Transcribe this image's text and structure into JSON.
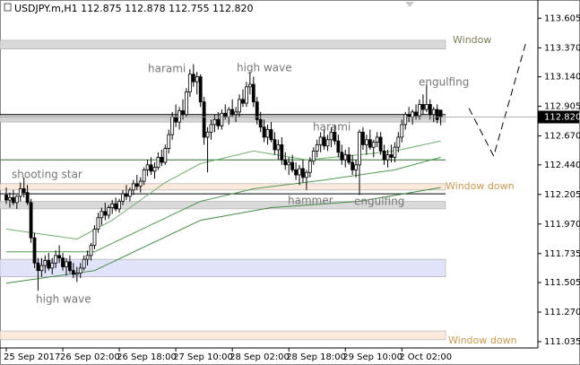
{
  "chart_data": {
    "type": "candlestick",
    "header": "USDJPY.m,H1  112.875 112.878 112.755 112.820",
    "ylim": [
      110.985,
      113.75
    ],
    "yticks": [
      113.605,
      {
        "value": 113.37,
        "label": "113.370"
      },
      {
        "value": 113.14,
        "label": "113.140"
      },
      112.905,
      {
        "value": 112.67,
        "label": "112.670"
      },
      {
        "value": 112.44,
        "label": "112.440"
      },
      112.205,
      {
        "value": 111.97,
        "label": "111.970"
      },
      111.735,
      111.505,
      {
        "value": 111.27,
        "label": "111.270"
      },
      111.035
    ],
    "xlim": [
      -0.5,
      150.5
    ],
    "xticks": [
      {
        "value": 0,
        "label": "25 Sep 2017"
      },
      {
        "value": 16,
        "label": "26 Sep 02:00"
      },
      {
        "value": 32,
        "label": "26 Sep 18:00"
      },
      {
        "value": 48,
        "label": "27 Sep 10:00"
      },
      {
        "value": 64,
        "label": "28 Sep 02:00"
      },
      {
        "value": 80,
        "label": "28 Sep 18:00"
      },
      {
        "value": 96,
        "label": "29 Sep 10:00"
      },
      {
        "value": 112,
        "label": "2 Oct 02:00"
      }
    ],
    "last_price": {
      "value": 112.82,
      "label": "112.820"
    },
    "bull_color": "#ffffff",
    "bear_color": "#000000",
    "candles": [
      [
        112.2,
        112.26,
        112.13,
        112.16
      ],
      [
        112.16,
        112.22,
        112.1,
        112.18
      ],
      [
        112.18,
        112.24,
        112.12,
        112.14
      ],
      [
        112.14,
        112.2,
        112.09,
        112.19
      ],
      [
        112.19,
        112.3,
        112.15,
        112.25
      ],
      [
        112.25,
        112.34,
        112.18,
        112.22
      ],
      [
        112.22,
        112.28,
        112.12,
        112.14
      ],
      [
        112.14,
        112.17,
        111.82,
        111.86
      ],
      [
        111.86,
        111.9,
        111.62,
        111.66
      ],
      [
        111.66,
        111.7,
        111.44,
        111.6
      ],
      [
        111.6,
        111.7,
        111.55,
        111.64
      ],
      [
        111.64,
        111.72,
        111.58,
        111.68
      ],
      [
        111.68,
        111.74,
        111.6,
        111.62
      ],
      [
        111.62,
        111.7,
        111.57,
        111.66
      ],
      [
        111.66,
        111.76,
        111.62,
        111.72
      ],
      [
        111.72,
        111.8,
        111.66,
        111.7
      ],
      [
        111.7,
        111.74,
        111.6,
        111.63
      ],
      [
        111.63,
        111.7,
        111.56,
        111.67
      ],
      [
        111.67,
        111.72,
        111.58,
        111.6
      ],
      [
        111.6,
        111.66,
        111.54,
        111.57
      ],
      [
        111.57,
        111.63,
        111.51,
        111.58
      ],
      [
        111.58,
        111.66,
        111.54,
        111.62
      ],
      [
        111.62,
        111.72,
        111.6,
        111.69
      ],
      [
        111.69,
        111.76,
        111.64,
        111.72
      ],
      [
        111.72,
        111.82,
        111.68,
        111.8
      ],
      [
        111.8,
        111.96,
        111.77,
        111.93
      ],
      [
        111.93,
        112.06,
        111.9,
        112.02
      ],
      [
        112.02,
        112.1,
        111.96,
        112.07
      ],
      [
        112.07,
        112.14,
        112.0,
        112.04
      ],
      [
        112.04,
        112.12,
        112.01,
        112.1
      ],
      [
        112.1,
        112.16,
        112.05,
        112.13
      ],
      [
        112.13,
        112.18,
        112.07,
        112.09
      ],
      [
        112.09,
        112.17,
        112.06,
        112.15
      ],
      [
        112.15,
        112.24,
        112.12,
        112.21
      ],
      [
        112.21,
        112.28,
        112.16,
        112.19
      ],
      [
        112.19,
        112.26,
        112.15,
        112.24
      ],
      [
        112.24,
        112.32,
        112.2,
        112.29
      ],
      [
        112.29,
        112.36,
        112.24,
        112.27
      ],
      [
        112.27,
        112.34,
        112.22,
        112.31
      ],
      [
        112.31,
        112.42,
        112.28,
        112.4
      ],
      [
        112.4,
        112.48,
        112.35,
        112.44
      ],
      [
        112.44,
        112.5,
        112.36,
        112.39
      ],
      [
        112.39,
        112.46,
        112.33,
        112.42
      ],
      [
        112.42,
        112.54,
        112.4,
        112.5
      ],
      [
        112.5,
        112.56,
        112.43,
        112.46
      ],
      [
        112.46,
        112.6,
        112.44,
        112.57
      ],
      [
        112.57,
        112.72,
        112.53,
        112.68
      ],
      [
        112.68,
        112.86,
        112.64,
        112.82
      ],
      [
        112.82,
        112.92,
        112.74,
        112.78
      ],
      [
        112.78,
        112.9,
        112.72,
        112.87
      ],
      [
        112.87,
        112.96,
        112.8,
        112.84
      ],
      [
        112.84,
        113.05,
        112.82,
        113.02
      ],
      [
        113.02,
        113.2,
        112.98,
        113.16
      ],
      [
        113.16,
        113.24,
        113.06,
        113.1
      ],
      [
        113.1,
        113.18,
        113.0,
        113.14
      ],
      [
        113.14,
        113.16,
        112.9,
        112.94
      ],
      [
        112.94,
        112.98,
        112.6,
        112.66
      ],
      [
        112.66,
        112.74,
        112.38,
        112.7
      ],
      [
        112.7,
        112.8,
        112.64,
        112.76
      ],
      [
        112.76,
        112.84,
        112.7,
        112.8
      ],
      [
        112.8,
        112.86,
        112.72,
        112.75
      ],
      [
        112.75,
        112.88,
        112.72,
        112.85
      ],
      [
        112.85,
        112.92,
        112.8,
        112.82
      ],
      [
        112.82,
        112.9,
        112.76,
        112.88
      ],
      [
        112.88,
        112.96,
        112.82,
        112.84
      ],
      [
        112.84,
        112.9,
        112.78,
        112.86
      ],
      [
        112.86,
        113.0,
        112.82,
        112.96
      ],
      [
        112.96,
        113.04,
        112.9,
        112.93
      ],
      [
        112.93,
        113.1,
        112.9,
        113.06
      ],
      [
        113.06,
        113.18,
        113.0,
        113.08
      ],
      [
        113.08,
        113.14,
        112.9,
        112.94
      ],
      [
        112.94,
        112.98,
        112.76,
        112.8
      ],
      [
        112.8,
        112.86,
        112.7,
        112.74
      ],
      [
        112.74,
        112.8,
        112.62,
        112.66
      ],
      [
        112.66,
        112.76,
        112.6,
        112.72
      ],
      [
        112.72,
        112.78,
        112.62,
        112.64
      ],
      [
        112.64,
        112.7,
        112.52,
        112.56
      ],
      [
        112.56,
        112.64,
        112.48,
        112.6
      ],
      [
        112.6,
        112.66,
        112.44,
        112.48
      ],
      [
        112.48,
        112.54,
        112.4,
        112.44
      ],
      [
        112.44,
        112.5,
        112.36,
        112.46
      ],
      [
        112.46,
        112.52,
        112.38,
        112.4
      ],
      [
        112.4,
        112.46,
        112.32,
        112.36
      ],
      [
        112.36,
        112.44,
        112.28,
        112.41
      ],
      [
        112.41,
        112.48,
        112.3,
        112.34
      ],
      [
        112.34,
        112.4,
        112.24,
        112.38
      ],
      [
        112.38,
        112.5,
        112.34,
        112.47
      ],
      [
        112.47,
        112.58,
        112.44,
        112.55
      ],
      [
        112.55,
        112.64,
        112.5,
        112.6
      ],
      [
        112.6,
        112.7,
        112.54,
        112.66
      ],
      [
        112.66,
        112.72,
        112.56,
        112.59
      ],
      [
        112.59,
        112.68,
        112.55,
        112.64
      ],
      [
        112.64,
        112.74,
        112.58,
        112.7
      ],
      [
        112.7,
        112.76,
        112.6,
        112.63
      ],
      [
        112.63,
        112.68,
        112.5,
        112.54
      ],
      [
        112.54,
        112.6,
        112.44,
        112.48
      ],
      [
        112.48,
        112.56,
        112.42,
        112.52
      ],
      [
        112.52,
        112.58,
        112.44,
        112.46
      ],
      [
        112.46,
        112.52,
        112.36,
        112.4
      ],
      [
        112.4,
        112.48,
        112.34,
        112.44
      ],
      [
        112.44,
        112.72,
        112.2,
        112.7
      ],
      [
        112.7,
        112.74,
        112.56,
        112.6
      ],
      [
        112.6,
        112.68,
        112.52,
        112.64
      ],
      [
        112.64,
        112.72,
        112.56,
        112.58
      ],
      [
        112.58,
        112.64,
        112.5,
        112.62
      ],
      [
        112.62,
        112.7,
        112.58,
        112.66
      ],
      [
        112.66,
        112.7,
        112.52,
        112.55
      ],
      [
        112.55,
        112.6,
        112.44,
        112.48
      ],
      [
        112.48,
        112.56,
        112.42,
        112.52
      ],
      [
        112.52,
        112.6,
        112.46,
        112.5
      ],
      [
        112.5,
        112.62,
        112.46,
        112.58
      ],
      [
        112.58,
        112.7,
        112.54,
        112.66
      ],
      [
        112.66,
        112.8,
        112.62,
        112.76
      ],
      [
        112.76,
        112.86,
        112.72,
        112.84
      ],
      [
        112.84,
        112.9,
        112.78,
        112.82
      ],
      [
        112.82,
        112.88,
        112.76,
        112.86
      ],
      [
        112.86,
        112.92,
        112.8,
        112.83
      ],
      [
        112.83,
        112.96,
        112.8,
        112.92
      ],
      [
        112.92,
        113.0,
        112.84,
        112.88
      ],
      [
        112.88,
        113.08,
        112.86,
        112.92
      ],
      [
        112.92,
        112.96,
        112.8,
        112.84
      ],
      [
        112.84,
        112.9,
        112.78,
        112.88
      ],
      [
        112.88,
        112.92,
        112.77,
        112.8
      ],
      [
        112.875,
        112.878,
        112.755,
        112.82
      ]
    ],
    "moving_averages": [
      {
        "color": "#6cae6c",
        "x": [
          0,
          20,
          30,
          45,
          55,
          70,
          85,
          100,
          110,
          123
        ],
        "values": [
          111.93,
          111.85,
          112.0,
          112.3,
          112.45,
          112.55,
          112.48,
          112.52,
          112.55,
          112.63
        ]
      },
      {
        "color": "#4f9a4f",
        "x": [
          0,
          25,
          40,
          55,
          70,
          90,
          110,
          123
        ],
        "values": [
          111.75,
          111.75,
          111.95,
          112.15,
          112.25,
          112.32,
          112.4,
          112.5
        ]
      },
      {
        "color": "#3f8a3f",
        "x": [
          0,
          25,
          40,
          55,
          75,
          100,
          123
        ],
        "values": [
          111.5,
          111.6,
          111.8,
          112.0,
          112.1,
          112.15,
          112.26
        ]
      }
    ],
    "zones": [
      {
        "from": 113.43,
        "to": 113.36,
        "color": "#d9d9d9"
      },
      {
        "from": 112.84,
        "to": 112.78,
        "color": "#d4d4d4"
      },
      {
        "from": 112.29,
        "to": 112.24,
        "color": "#fbe9dc"
      },
      {
        "from": 112.15,
        "to": 112.09,
        "color": "#d9d9d9"
      },
      {
        "from": 111.69,
        "to": 111.55,
        "color": "#e0e3fa"
      },
      {
        "from": 111.12,
        "to": 111.05,
        "color": "#fbe9dc"
      }
    ],
    "levels": [
      {
        "value": 112.84,
        "color": "#000000"
      },
      {
        "value": 112.48,
        "color": "#2f6f2f"
      },
      {
        "value": 112.21,
        "color": "#000000"
      }
    ],
    "projection": {
      "x": [
        131,
        138,
        147
      ],
      "values": [
        112.89,
        112.51,
        113.4
      ]
    },
    "annotations": [
      "Window",
      "Window down",
      "Window down",
      "harami",
      "high wave",
      "engulfing",
      "harami",
      "shooting star",
      "hammer",
      "engulfing",
      "high wave"
    ]
  }
}
